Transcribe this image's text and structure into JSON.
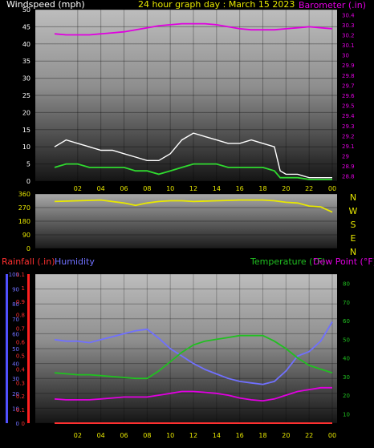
{
  "header": {
    "windspeed_label": "Windspeed (mph)",
    "graph_title": "24 hour graph day : March 15 2023",
    "barometer_label": "Barometer (.in)"
  },
  "colors": {
    "background": "#000000",
    "wind_avg": "#2fd92f",
    "wind_gust": "#ffffff",
    "barometer": "#e000e0",
    "direction": "#e8e800",
    "temperature": "#20c020",
    "dew_point": "#e000e0",
    "humidity": "#7070ff",
    "rainfall": "#ff3030",
    "tick_yellow": "#e8e800"
  },
  "chart_data": [
    {
      "type": "line",
      "panel": "wind-barometer",
      "x_ticks": [
        "02",
        "04",
        "06",
        "08",
        "10",
        "12",
        "14",
        "16",
        "18",
        "20",
        "22",
        "00"
      ],
      "y_left_ticks": [
        "0",
        "5",
        "10",
        "15",
        "20",
        "25",
        "30",
        "35",
        "40",
        "45",
        "50"
      ],
      "y_left_range": [
        0,
        50
      ],
      "y_right_ticks": [
        "28.8",
        "28.9",
        "29",
        "29.1",
        "29.2",
        "29.3",
        "29.4",
        "29.5",
        "29.6",
        "29.7",
        "29.8",
        "29.9",
        "30",
        "30.1",
        "30.2",
        "30.3",
        "30.4"
      ],
      "y_right_range": [
        28.75,
        30.45
      ],
      "x_range_hours": [
        0,
        24
      ],
      "series": [
        {
          "axis": "right",
          "x": [
            0,
            1,
            2,
            3,
            4,
            5,
            6,
            7,
            8,
            9,
            10,
            11,
            12,
            13,
            14,
            15,
            16,
            17,
            18,
            19,
            20,
            21,
            22,
            23,
            24
          ],
          "values": [
            30.21,
            30.2,
            30.2,
            30.2,
            30.21,
            30.22,
            30.23,
            30.25,
            30.27,
            30.29,
            30.3,
            30.31,
            30.31,
            30.31,
            30.3,
            30.28,
            30.26,
            30.25,
            30.25,
            30.25,
            30.26,
            30.27,
            30.28,
            30.27,
            30.26
          ]
        },
        {
          "axis": "left",
          "x": [
            0,
            1,
            2,
            3,
            4,
            5,
            6,
            7,
            8,
            9,
            10,
            11,
            12,
            13,
            14,
            15,
            16,
            17,
            18,
            19,
            19.5,
            20,
            21,
            22,
            23,
            24
          ],
          "values": [
            4,
            5,
            5,
            4,
            4,
            4,
            4,
            3,
            3,
            2,
            3,
            4,
            5,
            5,
            5,
            4,
            4,
            4,
            4,
            3,
            1,
            1,
            1,
            0.5,
            0.5,
            0.5
          ]
        },
        {
          "axis": "left",
          "x": [
            0,
            1,
            2,
            3,
            4,
            5,
            6,
            7,
            8,
            9,
            10,
            11,
            12,
            13,
            14,
            15,
            16,
            17,
            18,
            19,
            19.5,
            20,
            21,
            22,
            23,
            24
          ],
          "values": [
            10,
            12,
            11,
            10,
            9,
            9,
            8,
            7,
            6,
            6,
            8,
            12,
            14,
            13,
            12,
            11,
            11,
            12,
            11,
            10,
            3,
            2,
            2,
            1,
            1,
            1
          ]
        }
      ]
    },
    {
      "type": "line",
      "panel": "wind-direction",
      "x_ticks": [
        "02",
        "04",
        "06",
        "08",
        "10",
        "12",
        "14",
        "16",
        "18",
        "20",
        "22",
        "00"
      ],
      "y_ticks": [
        "0",
        "90",
        "180",
        "270",
        "360"
      ],
      "y_range": [
        0,
        360
      ],
      "compass_labels": [
        "N",
        "W",
        "S",
        "E",
        "N"
      ],
      "series": [
        {
          "x": [
            0,
            2,
            4,
            6,
            7,
            8,
            9,
            10,
            11,
            12,
            14,
            16,
            18,
            19,
            20,
            21,
            22,
            23,
            24
          ],
          "values": [
            310,
            315,
            320,
            300,
            285,
            300,
            310,
            315,
            315,
            310,
            315,
            320,
            320,
            315,
            305,
            300,
            280,
            275,
            240
          ]
        }
      ]
    },
    {
      "type": "line",
      "panel": "temperature-humidity",
      "x_ticks": [
        "02",
        "04",
        "06",
        "08",
        "10",
        "12",
        "14",
        "16",
        "18",
        "20",
        "22",
        "00"
      ],
      "rainfall_label": "Rainfall (.in)",
      "humidity_label": "Humidity",
      "temperature_label": "Temperature (°F)",
      "dew_point_label": "Dew Point (°F)",
      "y_humidity_ticks": [
        "0",
        "10",
        "20",
        "30",
        "40",
        "50",
        "60",
        "70",
        "80",
        "90",
        "100"
      ],
      "y_humidity_range": [
        0,
        100
      ],
      "y_rain_ticks": [
        "0",
        "0.1",
        "0.2",
        "0.3",
        "0.4",
        "0.5",
        "0.6",
        "0.7",
        "0.8",
        "0.9",
        "1",
        "1.1"
      ],
      "y_rain_range": [
        0,
        1.1
      ],
      "y_temp_ticks": [
        "10",
        "20",
        "30",
        "40",
        "50",
        "60",
        "70",
        "80"
      ],
      "y_temp_range": [
        5,
        85
      ],
      "series": [
        {
          "name": "Humidity",
          "axis": "humidity",
          "x": [
            0,
            1,
            2,
            3,
            4,
            5,
            6,
            7,
            8,
            9,
            10,
            11,
            12,
            13,
            14,
            15,
            16,
            17,
            18,
            19,
            20,
            21,
            22,
            23,
            24
          ],
          "values": [
            56,
            55,
            55,
            54,
            56,
            58,
            60,
            62,
            63,
            57,
            50,
            45,
            40,
            36,
            33,
            30,
            28,
            27,
            26,
            28,
            35,
            45,
            48,
            55,
            68
          ]
        },
        {
          "name": "Temperature (°F)",
          "axis": "temp",
          "x": [
            0,
            1,
            2,
            3,
            4,
            5,
            6,
            7,
            8,
            9,
            10,
            11,
            12,
            13,
            14,
            15,
            16,
            17,
            18,
            19,
            20,
            21,
            22,
            23,
            24
          ],
          "values": [
            32,
            31.5,
            31,
            31,
            30.5,
            30,
            29.5,
            29,
            29,
            33,
            38,
            43,
            47,
            49,
            50,
            51,
            52,
            52,
            52,
            49,
            45,
            40,
            36,
            34,
            32
          ]
        },
        {
          "name": "Dew Point (°F)",
          "axis": "temp",
          "x": [
            0,
            1,
            2,
            3,
            4,
            5,
            6,
            7,
            8,
            9,
            10,
            11,
            12,
            13,
            14,
            15,
            16,
            17,
            18,
            19,
            20,
            21,
            22,
            23,
            24
          ],
          "values": [
            18,
            17.5,
            17.5,
            17.5,
            18,
            18.5,
            19,
            19,
            19,
            20,
            21,
            22,
            22,
            21.5,
            21,
            20,
            18.5,
            17.5,
            17,
            18,
            20,
            22,
            23,
            24,
            24
          ]
        },
        {
          "name": "Rainfall (.in)",
          "axis": "rain",
          "x": [
            0,
            24
          ],
          "values": [
            0,
            0
          ]
        }
      ]
    }
  ]
}
